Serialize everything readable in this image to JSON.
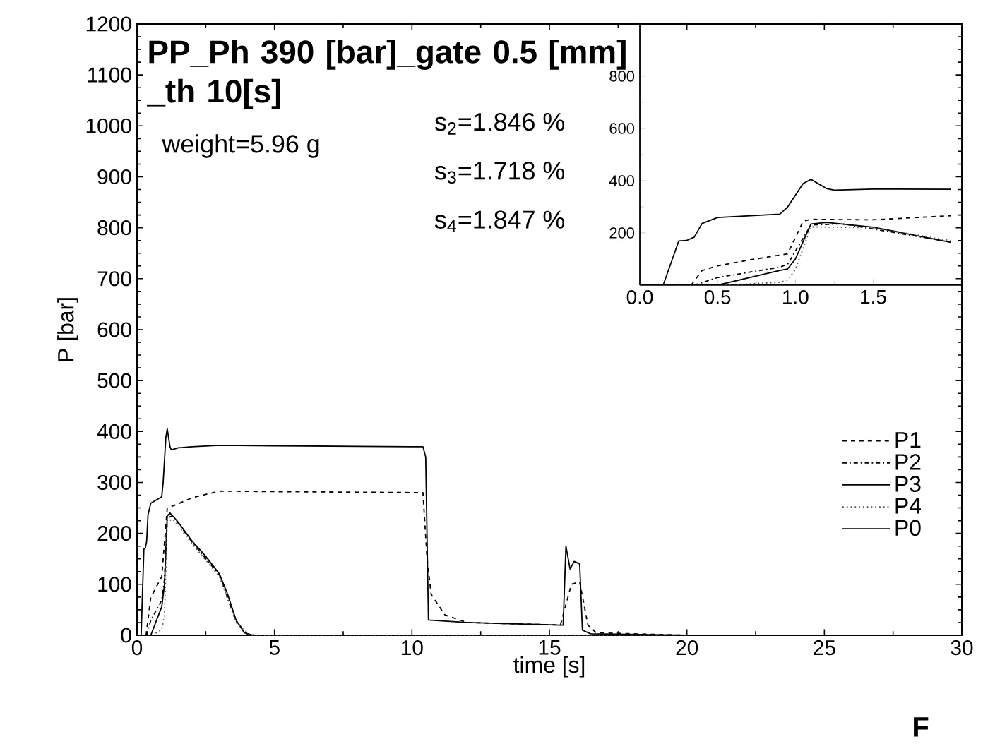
{
  "chart_data": [
    {
      "type": "line",
      "title": "PP_Ph 390 [bar]_gate 0.5 [mm] _th 10[s]",
      "xlabel": "time [s]",
      "ylabel": "P [bar]",
      "annotations": [
        "weight=5.96 g",
        "s$_{2}$=1.846 %",
        "s$_{3}$=1.718 %",
        "s$_{4}$=1.847 %",
        "F"
      ],
      "xlim": [
        0,
        30
      ],
      "ylim": [
        0,
        1200
      ],
      "xticks": [
        0,
        5,
        10,
        15,
        20,
        25,
        30
      ],
      "yticks": [
        0,
        100,
        200,
        300,
        400,
        500,
        600,
        700,
        800,
        900,
        1000,
        1100,
        1200
      ],
      "legend": "right",
      "series": [
        {
          "name": "P1",
          "color": "#000000",
          "line_style": "dashed",
          "x": [
            0.33,
            0.5,
            0.9,
            1.0,
            1.1,
            1.5,
            2,
            3,
            5,
            10.4,
            10.55,
            10.7,
            11.2,
            12,
            15.4,
            15.6,
            15.8,
            16.1,
            16.4,
            16.7,
            20
          ],
          "values": [
            0,
            74,
            115,
            182,
            250,
            258,
            270,
            283,
            282,
            280,
            150,
            80,
            40,
            25,
            20,
            60,
            100,
            105,
            20,
            5,
            0
          ]
        },
        {
          "name": "P2",
          "color": "#000000",
          "line_style": "dashdot",
          "x": [
            0.35,
            0.5,
            0.9,
            1.0,
            1.1,
            1.3,
            2,
            3,
            3.6,
            4.0,
            4.3,
            20
          ],
          "values": [
            0,
            29,
            69,
            110,
            230,
            235,
            183,
            118,
            28,
            3,
            0,
            0
          ]
        },
        {
          "name": "P3",
          "color": "#000000",
          "line_style": "solid",
          "x": [
            0.5,
            0.9,
            1.0,
            1.1,
            1.2,
            1.5,
            2,
            2.5,
            3,
            3.3,
            3.6,
            3.9,
            4.2,
            20
          ],
          "values": [
            0,
            56,
            100,
            234,
            240,
            222,
            185,
            155,
            120,
            80,
            30,
            5,
            0,
            0
          ]
        },
        {
          "name": "P4",
          "color": "#555555",
          "line_style": "dotted",
          "x": [
            0.55,
            0.9,
            1.0,
            1.1,
            1.3,
            2,
            3,
            3.6,
            4.1,
            20
          ],
          "values": [
            0,
            11,
            40,
            223,
            228,
            180,
            115,
            25,
            0,
            0
          ]
        },
        {
          "name": "P0",
          "color": "#000000",
          "line_style": "solid",
          "x": [
            0.15,
            0.25,
            0.3,
            0.35,
            0.4,
            0.5,
            0.9,
            0.95,
            1.05,
            1.1,
            1.2,
            1.25,
            1.5,
            2,
            3,
            5,
            10,
            10.4,
            10.5,
            10.6,
            12,
            14,
            15.4,
            15.5,
            15.6,
            15.75,
            15.9,
            16.1,
            16.2,
            16.5,
            20
          ],
          "values": [
            0,
            169,
            171,
            184,
            236,
            259,
            272,
            299,
            389,
            405,
            370,
            364,
            368,
            370,
            373,
            372,
            370,
            370,
            350,
            30,
            25,
            22,
            20,
            20,
            175,
            130,
            145,
            140,
            10,
            3,
            0
          ]
        }
      ]
    },
    {
      "type": "line",
      "xlim": [
        0,
        2.07
      ],
      "ylim": [
        0,
        1000
      ],
      "xticks": [
        {
          "value": 0,
          "label": "0.0"
        },
        {
          "value": 0.5,
          "label": "0.5"
        },
        {
          "value": 1,
          "label": "1.0"
        },
        {
          "value": 1.5,
          "label": "1.5"
        }
      ],
      "yticks": [
        200,
        400,
        600,
        800
      ],
      "series": [
        {
          "color": "#000000",
          "line_style": "dashed",
          "x": [
            0.33,
            0.4,
            0.5,
            0.7,
            0.9,
            0.95,
            1.0,
            1.05,
            1.1,
            1.5,
            2.0
          ],
          "values": [
            0,
            56,
            74,
            96,
            115,
            120,
            182,
            245,
            252,
            250,
            266
          ]
        },
        {
          "color": "#000000",
          "line_style": "dashdot",
          "x": [
            0.35,
            0.5,
            0.9,
            0.95,
            1.0,
            1.1,
            1.3,
            2.0
          ],
          "values": [
            0,
            29,
            69,
            80,
            130,
            230,
            235,
            165
          ]
        },
        {
          "color": "#000000",
          "line_style": "solid",
          "x": [
            0.5,
            0.9,
            0.95,
            1.0,
            1.1,
            1.2,
            1.5,
            2.0
          ],
          "values": [
            0,
            56,
            62,
            100,
            234,
            240,
            222,
            164
          ]
        },
        {
          "color": "#555555",
          "line_style": "dotted",
          "x": [
            0.55,
            0.9,
            0.95,
            1.0,
            1.1,
            1.5,
            2.0
          ],
          "values": [
            0,
            11,
            20,
            60,
            223,
            220,
            170
          ]
        },
        {
          "color": "#000000",
          "line_style": "solid",
          "x": [
            0.15,
            0.25,
            0.3,
            0.35,
            0.4,
            0.5,
            0.9,
            0.95,
            1.05,
            1.1,
            1.2,
            1.25,
            1.5,
            2.0
          ],
          "values": [
            0,
            169,
            171,
            184,
            236,
            259,
            272,
            299,
            389,
            405,
            370,
            364,
            368,
            367
          ]
        }
      ]
    }
  ]
}
